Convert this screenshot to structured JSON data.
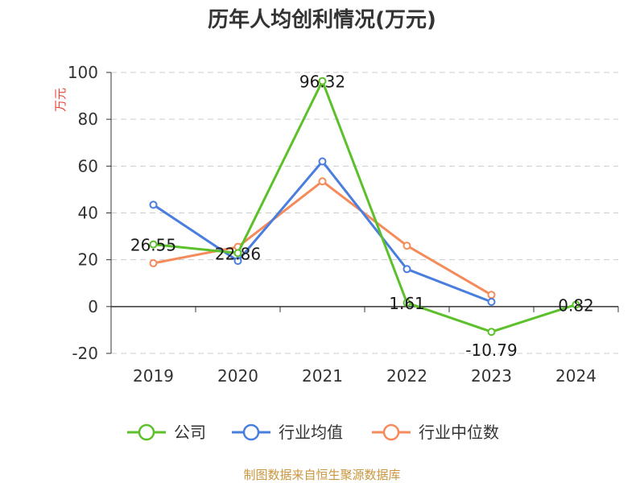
{
  "chart_data": {
    "type": "line",
    "title": "历年人均创利情况(万元)",
    "ylabel": "万元",
    "categories": [
      "2019",
      "2020",
      "2021",
      "2022",
      "2023",
      "2024"
    ],
    "ylim": [
      -20,
      100
    ],
    "yticks": [
      -20,
      0,
      20,
      40,
      60,
      80,
      100
    ],
    "grid": true,
    "legend_position": "bottom",
    "series": [
      {
        "name": "公司",
        "color": "#5cc02a",
        "values": [
          26.55,
          22.86,
          96.32,
          1.61,
          -10.79,
          0.82
        ],
        "labels": [
          "26.55",
          "22.86",
          "96.32",
          "1.61",
          "-10.79",
          "0.82"
        ]
      },
      {
        "name": "行业均值",
        "color": "#4a7ede",
        "values": [
          43.5,
          19.5,
          62.0,
          16.0,
          2.0,
          null
        ]
      },
      {
        "name": "行业中位数",
        "color": "#f58b5a",
        "values": [
          18.5,
          25.5,
          53.5,
          26.0,
          5.0,
          null
        ]
      }
    ]
  },
  "source": "制图数据来自恒生聚源数据库"
}
